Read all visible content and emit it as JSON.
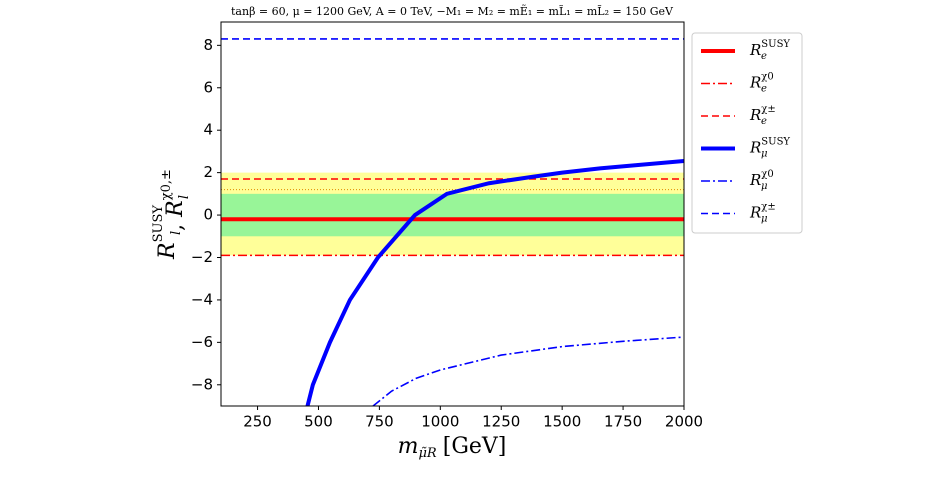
{
  "chart_data": {
    "type": "line",
    "title": "tanβ = 60,  μ = 1200 GeV,  A = 0 TeV,  −M₁ = M₂ = mẼ₁ = mL̃₁ = mL̃₂ = 150 GeV",
    "xlabel": {
      "base": "m",
      "sub": "μ̃R",
      "unit": "[GeV]"
    },
    "ylabel": [
      {
        "base": "R",
        "sub": "l",
        "sup": "SUSY"
      },
      {
        "sep": ", "
      },
      {
        "base": "R",
        "sub": "l",
        "sup": "χ0,±"
      }
    ],
    "xlim": [
      100,
      2000
    ],
    "ylim": [
      -9,
      9.1
    ],
    "xticks": [
      250,
      500,
      750,
      1000,
      1250,
      1500,
      1750,
      2000
    ],
    "yticks": [
      {
        "value": -8,
        "label": "−8"
      },
      {
        "value": -6,
        "label": "−6"
      },
      {
        "value": -4,
        "label": "−4"
      },
      {
        "value": -2,
        "label": "−2"
      },
      0,
      2,
      4,
      6,
      8
    ],
    "bands": [
      {
        "range": [
          -1.9,
          2.0
        ],
        "color": "#ffff99"
      },
      {
        "range": [
          -1,
          1
        ],
        "color": "#98f598"
      }
    ],
    "hlines": [
      {
        "value": 1.2,
        "color": "#e08a00"
      }
    ],
    "legend": "upper right outside",
    "series": [
      {
        "name": "R",
        "sub": "e",
        "sup": "SUSY",
        "color": "#ff0000",
        "style": "solid",
        "x": [
          100,
          2000
        ],
        "values": [
          -0.2,
          -0.2
        ]
      },
      {
        "name": "R",
        "sub": "e",
        "sup": "χ0",
        "color": "#ff0000",
        "style": "dashdot",
        "x": [
          100,
          2000
        ],
        "values": [
          -1.9,
          -1.9
        ]
      },
      {
        "name": "R",
        "sub": "e",
        "sup": "χ±",
        "color": "#ff0000",
        "style": "dashed",
        "x": [
          100,
          2000
        ],
        "values": [
          1.7,
          1.7
        ]
      },
      {
        "name": "R",
        "sub": "μ",
        "sup": "SUSY",
        "color": "#0000ff",
        "style": "solid",
        "x": [
          455,
          477,
          547,
          629,
          744,
          896,
          1027,
          1200,
          1376,
          1500,
          1655,
          1800,
          2000
        ],
        "values": [
          -9,
          -8,
          -6,
          -4,
          -2,
          0,
          1,
          1.5,
          1.8,
          2.0,
          2.2,
          2.35,
          2.55
        ]
      },
      {
        "name": "R",
        "sub": "μ",
        "sup": "χ0",
        "color": "#0000ff",
        "style": "dashdot",
        "x": [
          724,
          800,
          900,
          1000,
          1250,
          1500,
          1750,
          2000
        ],
        "values": [
          -9,
          -8.3,
          -7.7,
          -7.3,
          -6.6,
          -6.2,
          -5.95,
          -5.75
        ]
      },
      {
        "name": "R",
        "sub": "μ",
        "sup": "χ±",
        "color": "#0000ff",
        "style": "dashed",
        "x": [
          100,
          2000
        ],
        "values": [
          8.3,
          8.3
        ]
      }
    ]
  }
}
